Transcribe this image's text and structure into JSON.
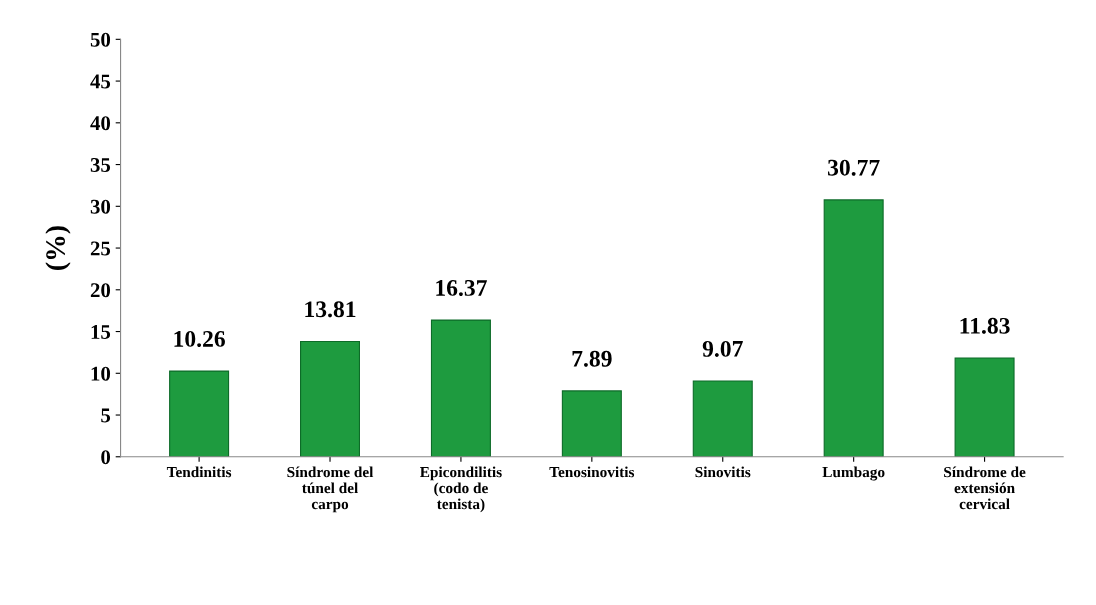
{
  "chart_data": {
    "type": "bar",
    "categories": [
      "Tendinitis",
      "Síndrome del\ntúnel del\ncarpo",
      "Epicondilitis\n(codo de\ntenista)",
      "Tenosinovitis",
      "Sinovitis",
      "Lumbago",
      "Síndrome de\nextensión\ncervical"
    ],
    "values": [
      10.26,
      13.81,
      16.37,
      7.89,
      9.07,
      30.77,
      11.83
    ],
    "color": "#1e9b3f",
    "ylabel": "(%)",
    "ylim": [
      0,
      50
    ],
    "yticks": [
      0,
      5,
      10,
      15,
      20,
      25,
      30,
      35,
      40,
      45,
      50
    ],
    "data_labels": true,
    "grid": false,
    "legend": false
  }
}
